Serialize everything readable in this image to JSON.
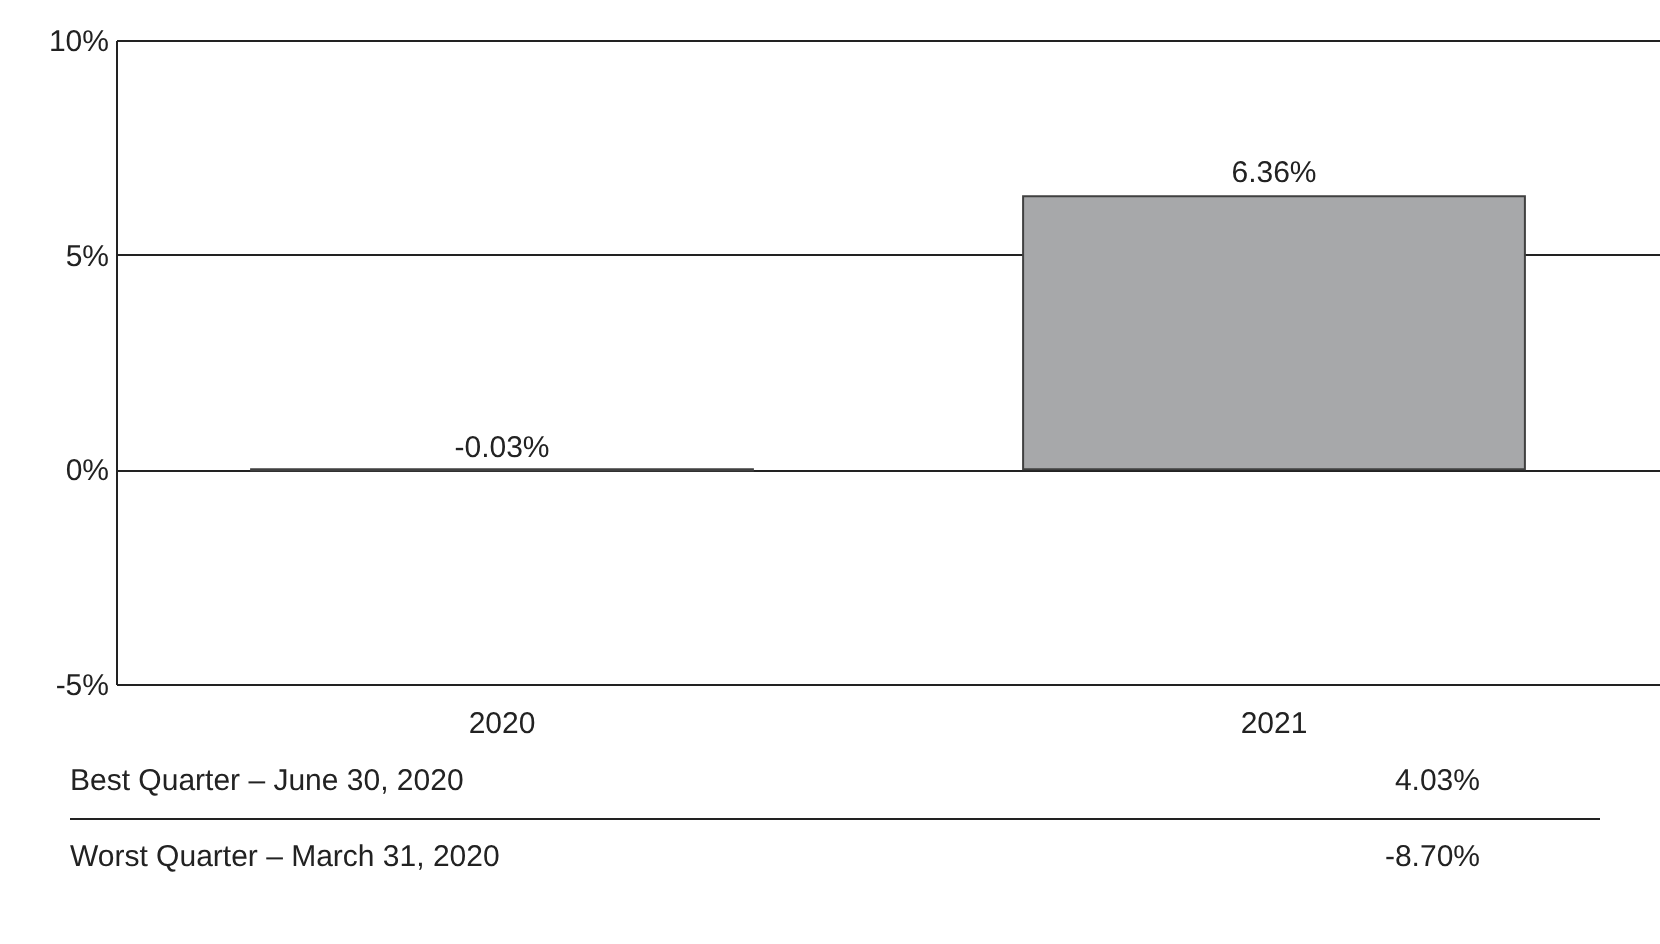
{
  "chart_data": {
    "type": "bar",
    "categories": [
      "2020",
      "2021"
    ],
    "values": [
      -0.03,
      6.36
    ],
    "value_labels": [
      "-0.03%",
      "6.36%"
    ],
    "color": "#a7a8aa",
    "ylim": [
      -5,
      10
    ],
    "yticks": [
      {
        "value": -5,
        "label": "-5%"
      },
      {
        "value": 0,
        "label": "0%"
      },
      {
        "value": 5,
        "label": "5%"
      },
      {
        "value": 10,
        "label": "10%"
      }
    ],
    "grid": "y",
    "annotations": [
      "Best Quarter – June 30, 2020",
      "4.03%",
      "Worst Quarter – March 31, 2020",
      "-8.70%"
    ]
  }
}
